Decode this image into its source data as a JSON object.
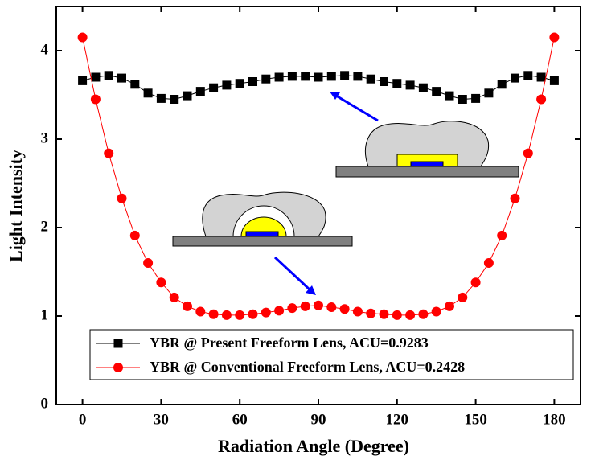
{
  "chart_data": {
    "type": "line",
    "x_label": "Radiation Angle (Degree)",
    "y_label": "Light Intensity",
    "x": [
      0,
      5,
      10,
      15,
      20,
      25,
      30,
      35,
      40,
      45,
      50,
      55,
      60,
      65,
      70,
      75,
      80,
      85,
      90,
      95,
      100,
      105,
      110,
      115,
      120,
      125,
      130,
      135,
      140,
      145,
      150,
      155,
      160,
      165,
      170,
      175,
      180
    ],
    "series": [
      {
        "name": "YBR @ Present Freeform Lens, ACU=0.9283",
        "color": "#000000",
        "marker": "square",
        "values": [
          3.66,
          3.7,
          3.72,
          3.69,
          3.62,
          3.52,
          3.46,
          3.45,
          3.49,
          3.54,
          3.58,
          3.61,
          3.63,
          3.65,
          3.68,
          3.7,
          3.71,
          3.71,
          3.7,
          3.71,
          3.72,
          3.71,
          3.68,
          3.65,
          3.63,
          3.61,
          3.58,
          3.54,
          3.49,
          3.45,
          3.46,
          3.52,
          3.62,
          3.69,
          3.72,
          3.7,
          3.66
        ]
      },
      {
        "name": "YBR @ Conventional Freeform Lens, ACU=0.2428",
        "color": "#ff0000",
        "marker": "circle",
        "values": [
          4.15,
          3.45,
          2.84,
          2.33,
          1.91,
          1.6,
          1.38,
          1.21,
          1.11,
          1.05,
          1.02,
          1.01,
          1.01,
          1.02,
          1.04,
          1.06,
          1.09,
          1.11,
          1.12,
          1.1,
          1.08,
          1.05,
          1.03,
          1.02,
          1.01,
          1.01,
          1.02,
          1.05,
          1.11,
          1.21,
          1.38,
          1.6,
          1.91,
          2.33,
          2.84,
          3.45,
          4.15
        ]
      }
    ],
    "xlim": [
      -10,
      190
    ],
    "xticks": [
      0,
      30,
      60,
      90,
      120,
      150,
      180
    ],
    "ylim": [
      0,
      4.5
    ],
    "yticks": [
      0,
      1,
      2,
      3,
      4
    ],
    "grid": false,
    "legend": "bottom"
  }
}
